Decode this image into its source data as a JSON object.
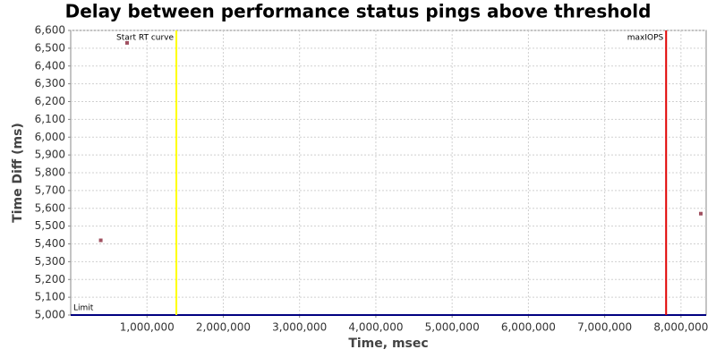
{
  "chart_data": {
    "type": "scatter",
    "title": "Delay between performance status pings above threshold",
    "x_label": "Time, msec",
    "y_label": "Time Diff (ms)",
    "series": [
      {
        "color": "#a05060",
        "x": [
          394000,
          739000,
          8260000
        ],
        "values": [
          5420,
          6530,
          5570
        ]
      }
    ],
    "xlim": [
      0,
      8330000
    ],
    "xticks": [
      {
        "value": 1000000,
        "label": "1,000,000"
      },
      {
        "value": 2000000,
        "label": "2,000,000"
      },
      {
        "value": 3000000,
        "label": "3,000,000"
      },
      {
        "value": 4000000,
        "label": "4,000,000"
      },
      {
        "value": 5000000,
        "label": "5,000,000"
      },
      {
        "value": 6000000,
        "label": "6,000,000"
      },
      {
        "value": 7000000,
        "label": "7,000,000"
      },
      {
        "value": 8000000,
        "label": "8,000,000"
      }
    ],
    "ylim": [
      5000,
      6600
    ],
    "yticks": [
      {
        "value": 5000,
        "label": "5,000"
      },
      {
        "value": 5100,
        "label": "5,100"
      },
      {
        "value": 5200,
        "label": "5,200"
      },
      {
        "value": 5300,
        "label": "5,300"
      },
      {
        "value": 5400,
        "label": "5,400"
      },
      {
        "value": 5500,
        "label": "5,500"
      },
      {
        "value": 5600,
        "label": "5,600"
      },
      {
        "value": 5700,
        "label": "5,700"
      },
      {
        "value": 5800,
        "label": "5,800"
      },
      {
        "value": 5900,
        "label": "5,900"
      },
      {
        "value": 6000,
        "label": "6,000"
      },
      {
        "value": 6100,
        "label": "6,100"
      },
      {
        "value": 6200,
        "label": "6,200"
      },
      {
        "value": 6300,
        "label": "6,300"
      },
      {
        "value": 6400,
        "label": "6,400"
      },
      {
        "value": 6500,
        "label": "6,500"
      },
      {
        "value": 6600,
        "label": "6,600"
      }
    ],
    "grid": true,
    "vertical_markers": [
      {
        "label": "Start RT curve",
        "value": 1385000,
        "color": "#ffff00"
      },
      {
        "label": "maxIOPS",
        "value": 7805000,
        "color": "#e00000"
      }
    ],
    "horizontal_markers": [
      {
        "label": "Limit",
        "value": 5000,
        "color": "#000080"
      }
    ]
  }
}
